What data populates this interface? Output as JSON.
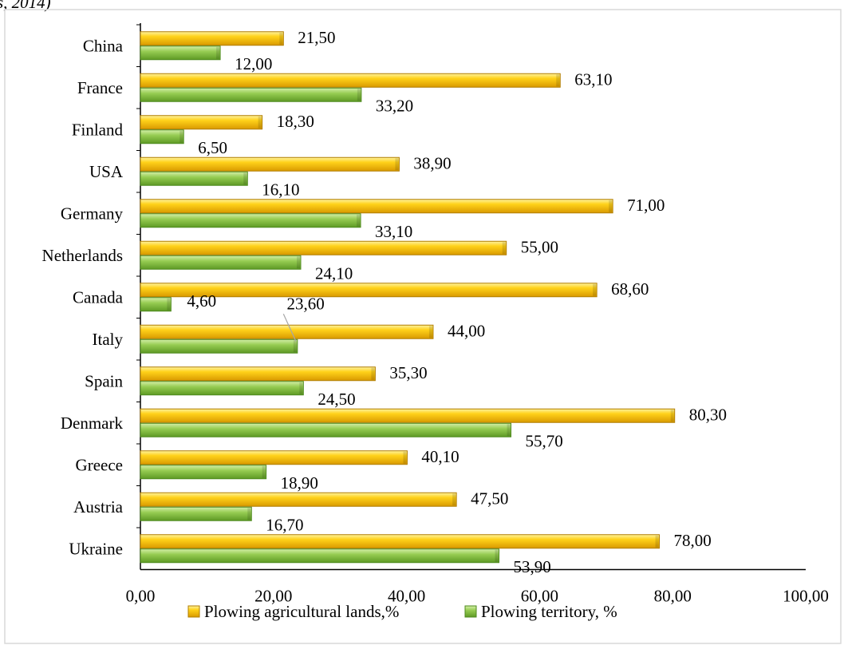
{
  "header_fragment": "s, 2014)",
  "chart_data": {
    "type": "bar",
    "orientation": "horizontal",
    "categories": [
      "China",
      "France",
      "Finland",
      "USA",
      "Germany",
      "Netherlands",
      "Canada",
      "Italy",
      "Spain",
      "Denmark",
      "Greece",
      "Austria",
      "Ukraine"
    ],
    "series": [
      {
        "name": "Plowing agricultural lands,%",
        "color": "#f5c400",
        "values": [
          21.5,
          63.1,
          18.3,
          38.9,
          71.0,
          55.0,
          68.6,
          44.0,
          35.3,
          80.3,
          40.1,
          47.5,
          78.0
        ],
        "labels": [
          "21,50",
          "63,10",
          "18,30",
          "38,90",
          "71,00",
          "55,00",
          "68,60",
          "44,00",
          "35,30",
          "80,30",
          "40,10",
          "47,50",
          "78,00"
        ]
      },
      {
        "name": "Plowing territory, %",
        "color": "#8fc64a",
        "values": [
          12.0,
          33.2,
          6.5,
          16.1,
          33.1,
          24.1,
          4.6,
          23.6,
          24.5,
          55.7,
          18.9,
          16.7,
          53.9
        ],
        "labels": [
          "12,00",
          "33,20",
          "6,50",
          "16,10",
          "33,10",
          "24,10",
          "4,60",
          "23,60",
          "24,50",
          "55,70",
          "18,90",
          "16,70",
          "53,90"
        ]
      }
    ],
    "xlim": [
      0,
      100
    ],
    "x_ticks": [
      0,
      20,
      40,
      60,
      80,
      100
    ],
    "x_tick_labels": [
      "0,00",
      "20,00",
      "40,00",
      "60,00",
      "80,00",
      "100,00"
    ],
    "grid": false,
    "legend_position": "bottom"
  }
}
